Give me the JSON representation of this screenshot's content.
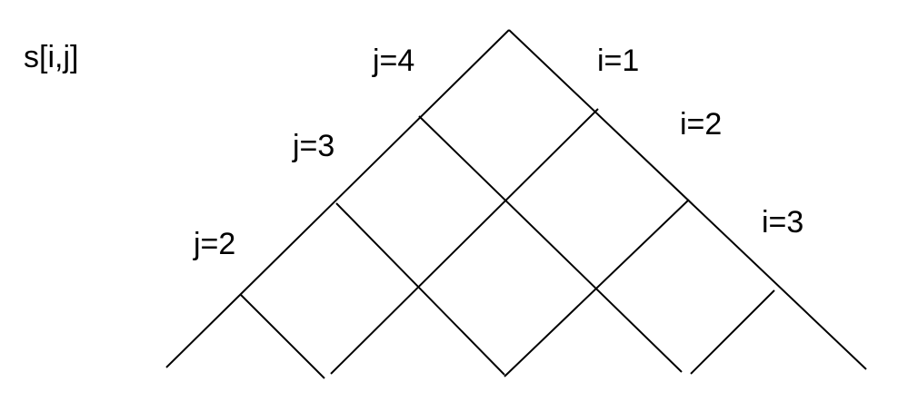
{
  "diagram": {
    "title": "s[i,j]",
    "j_labels": [
      "j=4",
      "j=3",
      "j=2"
    ],
    "i_labels": [
      "i=1",
      "i=2",
      "i=3"
    ],
    "line_color": "#000000"
  }
}
